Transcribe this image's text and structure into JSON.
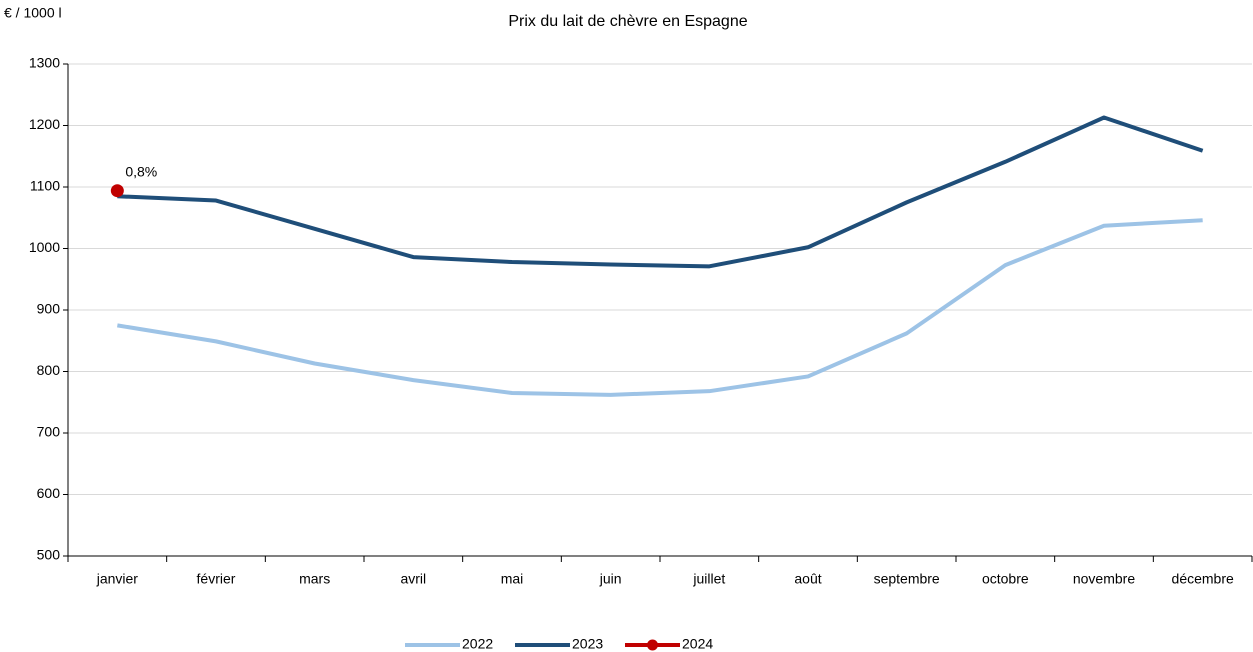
{
  "chart_data": {
    "type": "line",
    "title": "Prix du lait de chèvre en Espagne",
    "y_axis_label": "€ / 1000 l",
    "categories": [
      "janvier",
      "février",
      "mars",
      "avril",
      "mai",
      "juin",
      "juillet",
      "août",
      "septembre",
      "octobre",
      "novembre",
      "décembre"
    ],
    "series": [
      {
        "name": "2022",
        "color": "#9dc3e6",
        "marker": false,
        "values": [
          875,
          849,
          813,
          786,
          765,
          762,
          768,
          792,
          862,
          973,
          1037,
          1046
        ]
      },
      {
        "name": "2023",
        "color": "#1f4e79",
        "marker": false,
        "values": [
          1085,
          1078,
          1032,
          986,
          978,
          974,
          971,
          1002,
          1075,
          1141,
          1213,
          1159
        ]
      },
      {
        "name": "2024",
        "color": "#c00000",
        "marker": true,
        "values": [
          1094,
          null,
          null,
          null,
          null,
          null,
          null,
          null,
          null,
          null,
          null,
          null
        ]
      }
    ],
    "annotations": [
      {
        "text": "0,8%",
        "series": 2,
        "index": 0
      }
    ],
    "ylim": [
      500,
      1300
    ],
    "yticks": [
      500,
      600,
      700,
      800,
      900,
      1000,
      1100,
      1200,
      1300
    ],
    "grid": true,
    "legend": "bottom"
  }
}
